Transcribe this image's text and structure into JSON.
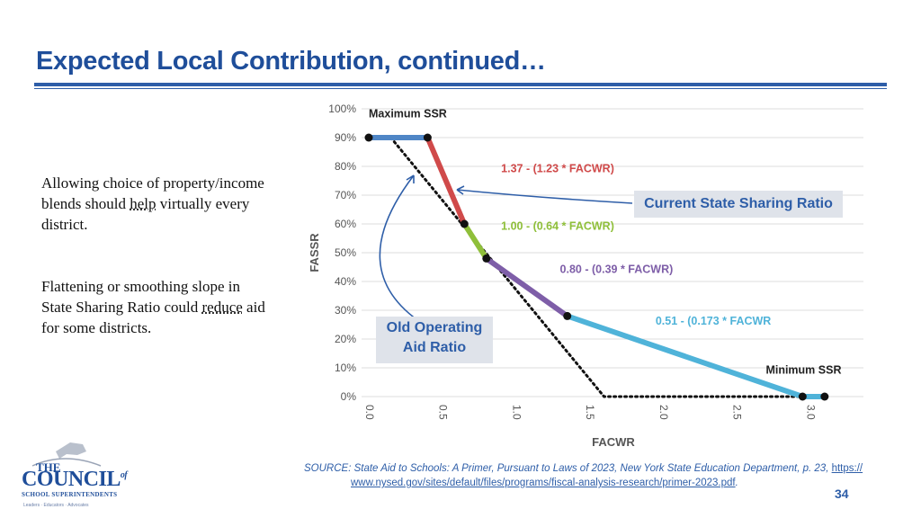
{
  "slide": {
    "title": "Expected Local Contribution, continued…",
    "page_number": "34"
  },
  "body_text": {
    "p1_a": "Allowing choice of property/income blends should ",
    "p1_em": "help",
    "p1_b": " virtually every district.",
    "p2_a": "Flattening or smoothing slope in State Sharing Ratio could ",
    "p2_em": "reduce",
    "p2_b": " aid for some districts."
  },
  "callouts": {
    "current_ssr": "Current State Sharing Ratio",
    "old_oar_line1": "Old Operating",
    "old_oar_line2": "Aid Ratio"
  },
  "source": {
    "text": "SOURCE: State Aid to Schools: A Primer, Pursuant to Laws of 2023, New York State Education Department, p. 23, ",
    "link_part1": "https://",
    "link_part2": "www.nysed.gov/sites/default/files/programs/fiscal-analysis-research/primer-2023.pdf",
    "tail": "."
  },
  "logo": {
    "the": "THE",
    "council": "COUNCIL",
    "of": "of",
    "superintendents": "SCHOOL SUPERINTENDENTS",
    "tagline": "Leaders · Educators · Advocates"
  },
  "colors": {
    "title": "#1f4e9a",
    "segment_blue": "#4f86c6",
    "segment_red": "#d04a4a",
    "segment_green": "#8fbf3a",
    "segment_purple": "#7e5ea8",
    "segment_cyan": "#4fb3d9"
  },
  "chart_data": {
    "type": "line",
    "xlabel": "FACWR",
    "ylabel": "FASSR",
    "xlim": [
      0,
      3.1
    ],
    "ylim": [
      0,
      100
    ],
    "x_ticks": [
      "0.0",
      "0.5",
      "1.0",
      "1.5",
      "2.0",
      "2.5",
      "3.0"
    ],
    "x_tick_values": [
      0,
      0.5,
      1.0,
      1.5,
      2.0,
      2.5,
      3.0
    ],
    "y_ticks": [
      "0%",
      "10%",
      "20%",
      "30%",
      "40%",
      "50%",
      "60%",
      "70%",
      "80%",
      "90%",
      "100%"
    ],
    "y_tick_values": [
      0,
      10,
      20,
      30,
      40,
      50,
      60,
      70,
      80,
      90,
      100
    ],
    "grid": true,
    "series": [
      {
        "name": "Maximum SSR",
        "color": "#4f86c6",
        "x": [
          0.0,
          0.4
        ],
        "y": [
          90,
          90
        ]
      },
      {
        "name": "1.37 - (1.23 * FACWR)",
        "color": "#d04a4a",
        "x": [
          0.4,
          0.65
        ],
        "y": [
          90,
          60
        ]
      },
      {
        "name": "1.00 - (0.64 * FACWR)",
        "color": "#8fbf3a",
        "x": [
          0.65,
          0.8
        ],
        "y": [
          60,
          48
        ]
      },
      {
        "name": "0.80 - (0.39 * FACWR)",
        "color": "#7e5ea8",
        "x": [
          0.8,
          1.35
        ],
        "y": [
          48,
          28
        ]
      },
      {
        "name": "0.51 - (0.173 * FACWR",
        "color": "#4fb3d9",
        "x": [
          1.35,
          2.95
        ],
        "y": [
          28,
          0
        ]
      },
      {
        "name": "Minimum SSR",
        "color": "#4fb3d9",
        "x": [
          2.95,
          3.1
        ],
        "y": [
          0,
          0
        ]
      }
    ],
    "old_operating_aid_ratio": {
      "name": "Old Operating Aid Ratio",
      "style": "dotted",
      "x": [
        0.15,
        1.6,
        3.0
      ],
      "y": [
        90,
        0,
        0
      ]
    },
    "breakpoints": [
      {
        "x": 0.0,
        "y": 90
      },
      {
        "x": 0.4,
        "y": 90
      },
      {
        "x": 0.65,
        "y": 60
      },
      {
        "x": 0.8,
        "y": 48
      },
      {
        "x": 1.35,
        "y": 28
      },
      {
        "x": 2.95,
        "y": 0
      },
      {
        "x": 3.1,
        "y": 0
      }
    ],
    "annotations": [
      {
        "text": "Maximum SSR",
        "x": 0.0,
        "y": 97,
        "color": "#222222"
      },
      {
        "text": "1.37 - (1.23 * FACWR)",
        "x": 0.9,
        "y": 78,
        "color": "#d04a4a"
      },
      {
        "text": "1.00 - (0.64 * FACWR)",
        "x": 0.9,
        "y": 58,
        "color": "#8fbf3a"
      },
      {
        "text": "0.80 - (0.39 * FACWR)",
        "x": 1.3,
        "y": 43,
        "color": "#7e5ea8"
      },
      {
        "text": "0.51 - (0.173 * FACWR",
        "x": 1.95,
        "y": 25,
        "color": "#4fb3d9"
      },
      {
        "text": "Minimum SSR",
        "x": 2.7,
        "y": 8,
        "color": "#222222"
      }
    ]
  }
}
